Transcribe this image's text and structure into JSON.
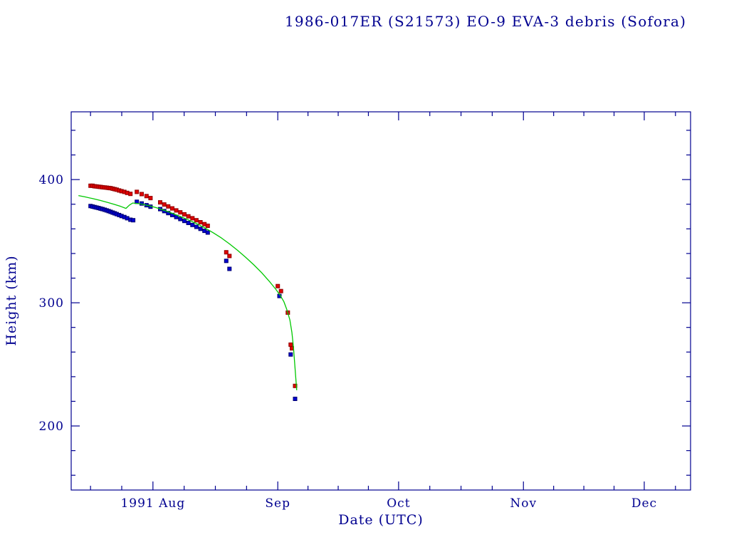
{
  "colors": {
    "axis": "#000090",
    "text": "#000090",
    "apogee": "#e10000",
    "apogee_edge": "#900000",
    "perigee": "#0000d2",
    "perigee_edge": "#000070",
    "model_line": "#00c800",
    "background": "#ffffff"
  },
  "chart_data": {
    "type": "scatter",
    "title": "1986-017ER (S21573) EO-9 EVA-3 debris (Sofora)",
    "xlabel": "Date (UTC)",
    "ylabel": "Height (km)",
    "x_unit": "days since 1991-07-01 (UTC)",
    "xlim": [
      10.7,
      164.5
    ],
    "ylim": [
      148,
      455
    ],
    "grid": false,
    "legend": "none",
    "xticks": [
      {
        "day": 31,
        "label": "1991 Aug"
      },
      {
        "day": 62,
        "label": "Sep"
      },
      {
        "day": 92,
        "label": "Oct"
      },
      {
        "day": 123,
        "label": "Nov"
      },
      {
        "day": 153,
        "label": "Dec"
      }
    ],
    "month_boundaries": [
      0,
      31,
      62,
      92,
      123,
      153,
      184
    ],
    "yticks": [
      {
        "value": 200,
        "label": "200"
      },
      {
        "value": 300,
        "label": "300"
      },
      {
        "value": 400,
        "label": "400"
      }
    ],
    "y_minor_step": 20,
    "series": [
      {
        "name": "apogee height",
        "kind": "scatter",
        "marker": "square",
        "color_key": "apogee",
        "edge_key": "apogee_edge",
        "points": [
          [
            15.5,
            395
          ],
          [
            16,
            395
          ],
          [
            16.5,
            394.6
          ],
          [
            17,
            394.4
          ],
          [
            17.5,
            394.2
          ],
          [
            18,
            394
          ],
          [
            18.5,
            393.8
          ],
          [
            19,
            393.6
          ],
          [
            19.5,
            393.4
          ],
          [
            20,
            393.2
          ],
          [
            20.5,
            393
          ],
          [
            21,
            392.6
          ],
          [
            21.5,
            392.2
          ],
          [
            22,
            391.8
          ],
          [
            22.6,
            391.2
          ],
          [
            23.2,
            390.6
          ],
          [
            23.9,
            390
          ],
          [
            24.6,
            389.2
          ],
          [
            25.4,
            388.4
          ],
          [
            27,
            390
          ],
          [
            28.2,
            388.2
          ],
          [
            29.4,
            386.6
          ],
          [
            30.4,
            385
          ],
          [
            32.8,
            381.5
          ],
          [
            33.8,
            379.8
          ],
          [
            34.8,
            378.2
          ],
          [
            35.8,
            376.6
          ],
          [
            36.8,
            375
          ],
          [
            37.8,
            373.4
          ],
          [
            38.8,
            371.8
          ],
          [
            39.8,
            370.2
          ],
          [
            40.8,
            368.6
          ],
          [
            41.8,
            367
          ],
          [
            42.8,
            365.4
          ],
          [
            43.8,
            363.8
          ],
          [
            44.6,
            362.5
          ],
          [
            49.2,
            341
          ],
          [
            50,
            338
          ],
          [
            62,
            313.5
          ],
          [
            62.8,
            309.5
          ],
          [
            64.5,
            292
          ],
          [
            65.2,
            266
          ],
          [
            65.5,
            263
          ],
          [
            66.3,
            232.5
          ]
        ]
      },
      {
        "name": "perigee height",
        "kind": "scatter",
        "marker": "square",
        "color_key": "perigee",
        "edge_key": "perigee_edge",
        "points": [
          [
            15.5,
            378.5
          ],
          [
            16,
            378.1
          ],
          [
            16.5,
            377.7
          ],
          [
            17,
            377.3
          ],
          [
            17.5,
            376.9
          ],
          [
            18,
            376.4
          ],
          [
            18.5,
            376
          ],
          [
            19,
            375.5
          ],
          [
            19.5,
            375
          ],
          [
            20,
            374.4
          ],
          [
            20.5,
            373.8
          ],
          [
            21,
            373.2
          ],
          [
            21.5,
            372.6
          ],
          [
            22,
            372
          ],
          [
            22.6,
            371.2
          ],
          [
            23.2,
            370.4
          ],
          [
            23.9,
            369.6
          ],
          [
            24.6,
            368.6
          ],
          [
            25.4,
            367.4
          ],
          [
            26.1,
            367
          ],
          [
            27,
            382
          ],
          [
            28.2,
            380.6
          ],
          [
            29.4,
            379.2
          ],
          [
            30.4,
            378
          ],
          [
            32.8,
            376
          ],
          [
            33.8,
            374.4
          ],
          [
            34.8,
            372.8
          ],
          [
            35.8,
            371.2
          ],
          [
            36.8,
            369.6
          ],
          [
            37.8,
            368
          ],
          [
            38.8,
            366.4
          ],
          [
            39.8,
            364.8
          ],
          [
            40.8,
            363.2
          ],
          [
            41.8,
            361.6
          ],
          [
            42.8,
            360
          ],
          [
            43.8,
            358.4
          ],
          [
            44.6,
            357
          ],
          [
            49.2,
            334
          ],
          [
            50,
            327.5
          ],
          [
            62.4,
            305.5
          ],
          [
            65.2,
            258
          ],
          [
            66.3,
            222
          ]
        ]
      },
      {
        "name": "model mean height",
        "kind": "line",
        "color_key": "model_line",
        "points": [
          [
            12.5,
            387
          ],
          [
            14,
            386
          ],
          [
            16,
            384.6
          ],
          [
            18,
            383
          ],
          [
            20,
            381.2
          ],
          [
            21.5,
            379.8
          ],
          [
            23,
            378.2
          ],
          [
            24.3,
            376.6
          ],
          [
            25.2,
            379.4
          ],
          [
            26,
            381
          ],
          [
            28,
            380.2
          ],
          [
            30,
            378.8
          ],
          [
            32,
            377
          ],
          [
            34,
            374.8
          ],
          [
            36,
            372.4
          ],
          [
            38,
            369.8
          ],
          [
            40,
            367
          ],
          [
            42,
            364
          ],
          [
            44,
            360.6
          ],
          [
            46,
            356.8
          ],
          [
            48,
            352.6
          ],
          [
            50,
            347.8
          ],
          [
            52,
            342.6
          ],
          [
            54,
            337
          ],
          [
            56,
            331
          ],
          [
            58,
            324.4
          ],
          [
            60,
            317
          ],
          [
            61.5,
            311
          ],
          [
            62.5,
            306.6
          ],
          [
            63.5,
            301
          ],
          [
            64.3,
            294
          ],
          [
            65,
            286
          ],
          [
            65.5,
            276
          ],
          [
            65.9,
            264
          ],
          [
            66.2,
            251
          ],
          [
            66.5,
            238
          ],
          [
            66.7,
            229
          ]
        ]
      }
    ]
  }
}
